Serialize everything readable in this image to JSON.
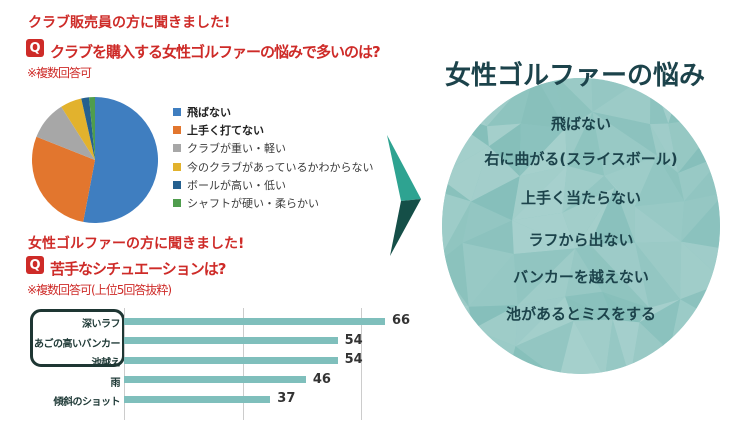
{
  "colors": {
    "red": "#ce2b28",
    "bar_fill": "#7fbfbc",
    "bar_value_text": "#333333",
    "bar_label_text": "#203b38",
    "gridline": "#cccccc",
    "highlight_box_border": "#1e3633",
    "arrow_light": "#2ea391",
    "arrow_dark": "#154f48",
    "bubble_fill": "#8fc8c3",
    "bubble_text": "#1c434b",
    "legend_text": "#3c3c3c"
  },
  "survey1": {
    "heading": "クラブ販売員の方に聞きました!",
    "q_badge": "Q",
    "question": "クラブを購入する女性ゴルファーの悩みで多いのは?",
    "note": "※複数回答可"
  },
  "survey2": {
    "heading": "女性ゴルファーの方に聞きました!",
    "q_badge": "Q",
    "question": "苦手なシチュエーションは?",
    "note": "※複数回答可(上位5回答抜粋)"
  },
  "bubble": {
    "title": "女性ゴルファーの悩み",
    "items": [
      "飛ばない",
      "右に曲がる(スライスボール)",
      "上手く当たらない",
      "ラフから出ない",
      "バンカーを越えない",
      "池があるとミスをする"
    ]
  },
  "chart_data": [
    {
      "type": "pie",
      "title": "クラブを購入する女性ゴルファーの悩みで多いのは?",
      "labels": [
        "飛ばない",
        "上手く打てない",
        "クラブが重い・軽い",
        "今のクラブがあっているかわからない",
        "ボールが高い・低い",
        "シャフトが硬い・柔らかい"
      ],
      "values": [
        53,
        28,
        10,
        5.5,
        2,
        1.5
      ],
      "unit": "percent-estimated",
      "colors": [
        "#3f7ec0",
        "#e2762e",
        "#a7a7a7",
        "#e2b22d",
        "#25608f",
        "#4f9d4d"
      ],
      "bold": [
        true,
        true,
        false,
        false,
        false,
        false
      ],
      "start_angle": "12-oclock-clockwise",
      "legend_position": "right"
    },
    {
      "type": "bar",
      "orientation": "horizontal",
      "title": "苦手なシチュエーションは?",
      "categories": [
        "深いラフ",
        "あごの高いバンカー",
        "池越え",
        "雨",
        "傾斜のショット"
      ],
      "values": [
        66,
        54,
        54,
        46,
        37
      ],
      "xlim": [
        0,
        70
      ],
      "x_gridlines": [
        0,
        30,
        60
      ],
      "grid": true,
      "highlighted_top_answers": 3
    }
  ]
}
